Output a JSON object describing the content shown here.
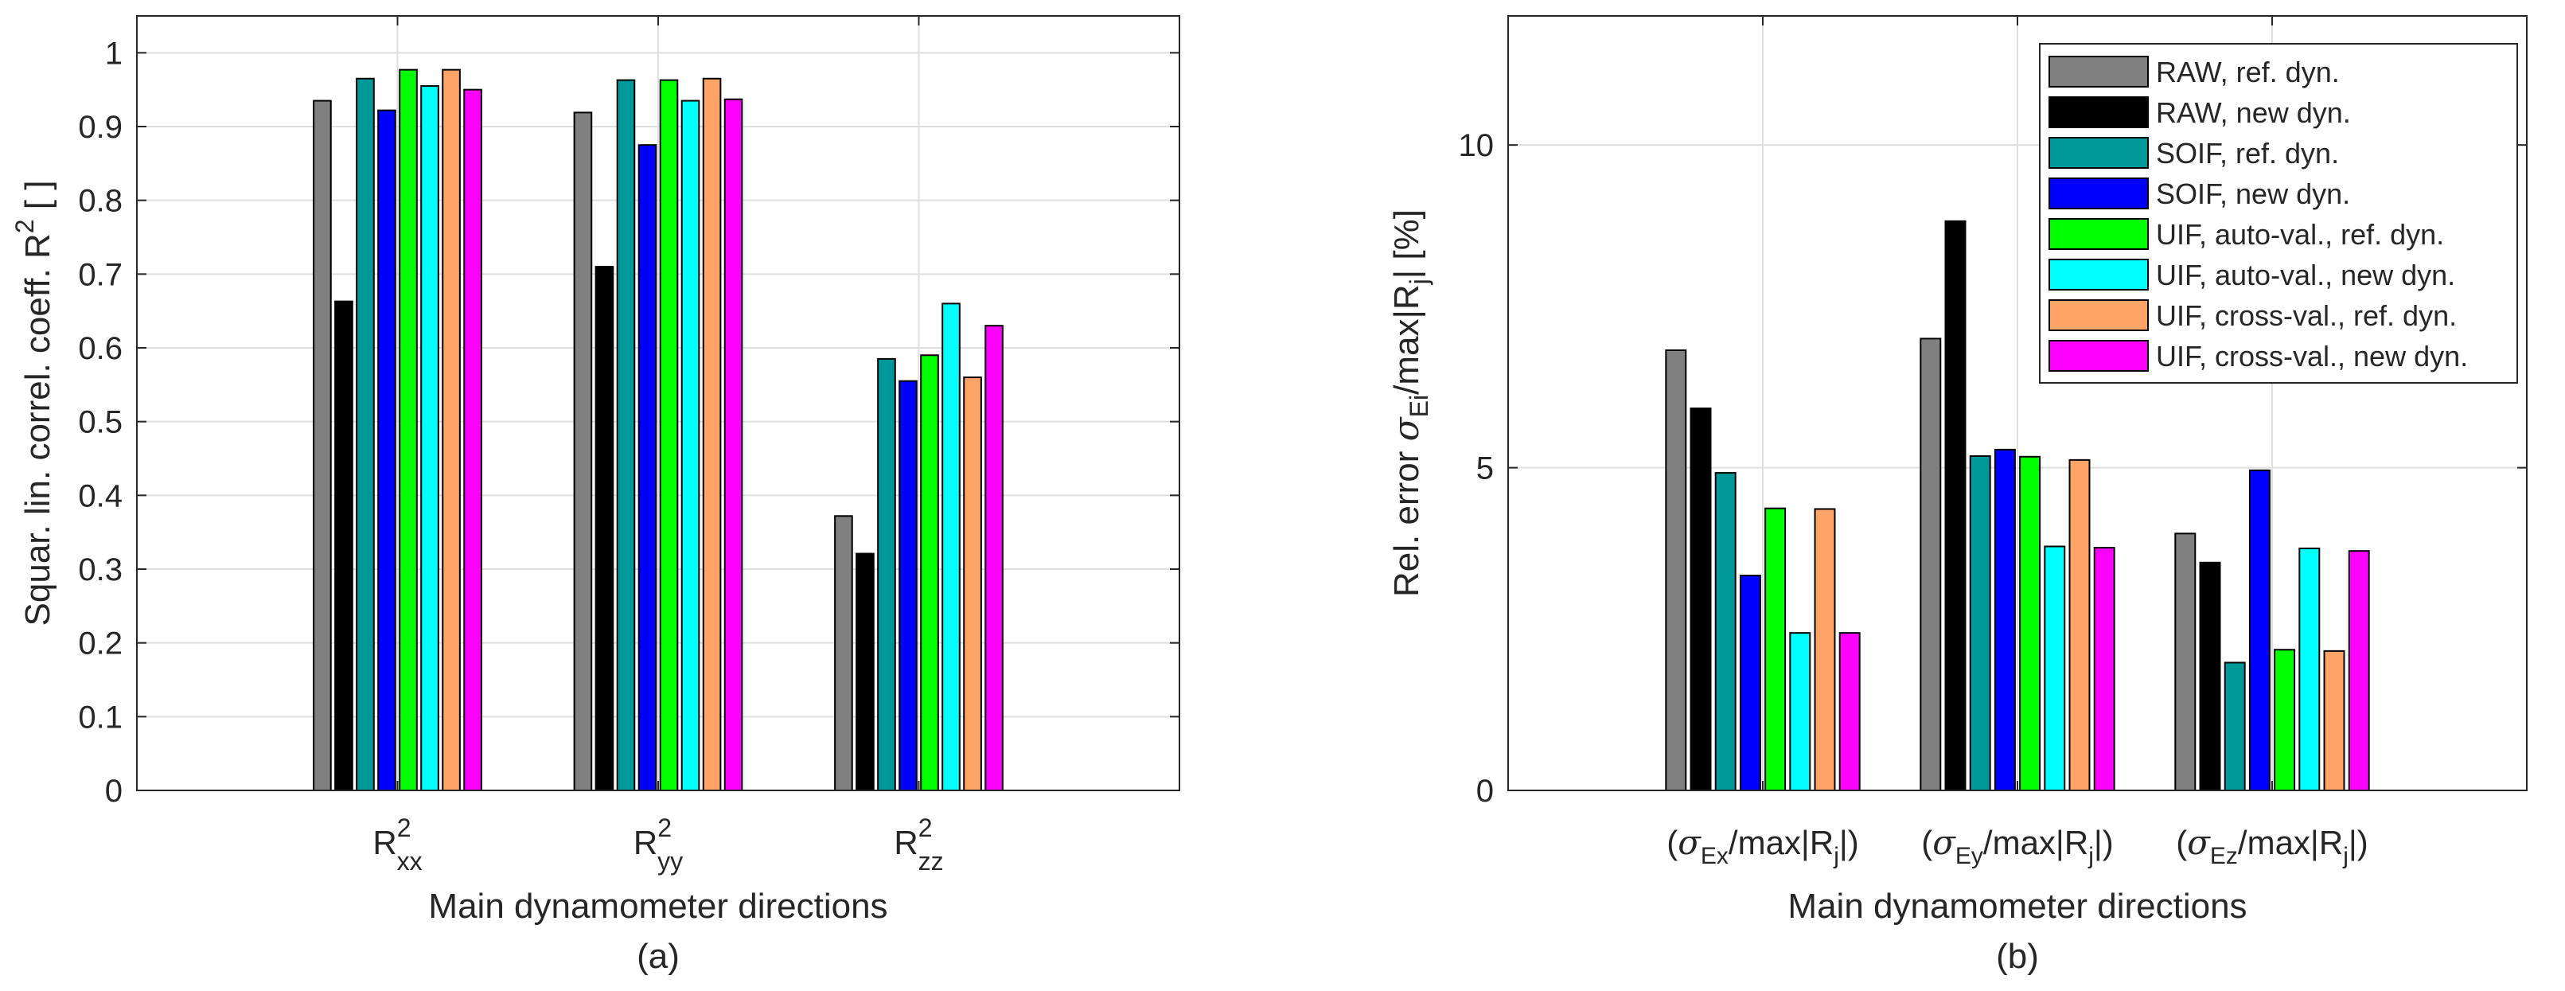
{
  "colors": {
    "RAW_ref": "#808080",
    "RAW_new": "#000000",
    "SOIF_ref": "#009999",
    "SOIF_new": "#0000ff",
    "UIF_auto_ref": "#00ff00",
    "UIF_auto_new": "#00ffff",
    "UIF_cross_ref": "#ffa366",
    "UIF_cross_new": "#ff00ff"
  },
  "chart_data": [
    {
      "type": "bar",
      "panel_label": "(a)",
      "xlabel": "Main dynamometer directions",
      "ylabel": "Squar. lin. correl. coeff. R² [ ]",
      "ylim": [
        0,
        1.05
      ],
      "yticks": [
        0,
        0.1,
        0.2,
        0.3,
        0.4,
        0.5,
        0.6,
        0.7,
        0.8,
        0.9,
        1
      ],
      "ytick_labels": [
        "0",
        "0.1",
        "0.2",
        "0.3",
        "0.4",
        "0.5",
        "0.6",
        "0.7",
        "0.8",
        "0.9",
        "1"
      ],
      "categories": [
        {
          "base": "R",
          "sup": "2",
          "sub": "xx"
        },
        {
          "base": "R",
          "sup": "2",
          "sub": "yy"
        },
        {
          "base": "R",
          "sup": "2",
          "sub": "zz"
        }
      ],
      "grid": true,
      "series": [
        {
          "name": "RAW, ref. dyn.",
          "color_key": "RAW_ref",
          "values": [
            0.935,
            0.919,
            0.372
          ]
        },
        {
          "name": "RAW, new dyn.",
          "color_key": "RAW_new",
          "values": [
            0.663,
            0.71,
            0.321
          ]
        },
        {
          "name": "SOIF, ref. dyn.",
          "color_key": "SOIF_ref",
          "values": [
            0.965,
            0.963,
            0.585
          ]
        },
        {
          "name": "SOIF, new dyn.",
          "color_key": "SOIF_new",
          "values": [
            0.922,
            0.875,
            0.555
          ]
        },
        {
          "name": "UIF, auto-val., ref. dyn.",
          "color_key": "UIF_auto_ref",
          "values": [
            0.977,
            0.963,
            0.59
          ]
        },
        {
          "name": "UIF, auto-val., new dyn.",
          "color_key": "UIF_auto_new",
          "values": [
            0.955,
            0.935,
            0.66
          ]
        },
        {
          "name": "UIF, cross-val., ref. dyn.",
          "color_key": "UIF_cross_ref",
          "values": [
            0.977,
            0.965,
            0.56
          ]
        },
        {
          "name": "UIF, cross-val., new dyn.",
          "color_key": "UIF_cross_new",
          "values": [
            0.95,
            0.937,
            0.63
          ]
        }
      ]
    },
    {
      "type": "bar",
      "panel_label": "(b)",
      "xlabel": "Main dynamometer directions",
      "ylabel": "Rel. error σEi/max|Rj| [%]",
      "ylim": [
        0,
        12
      ],
      "yticks": [
        0,
        5,
        10
      ],
      "ytick_labels": [
        "0",
        "5",
        "10"
      ],
      "categories": [
        {
          "pre": "(",
          "sigma": "σ",
          "sub": "Ex",
          "post": "/max|R",
          "sub2": "j",
          "end": "|)"
        },
        {
          "pre": "(",
          "sigma": "σ",
          "sub": "Ey",
          "post": "/max|R",
          "sub2": "j",
          "end": "|)"
        },
        {
          "pre": "(",
          "sigma": "σ",
          "sub": "Ez",
          "post": "/max|R",
          "sub2": "j",
          "end": "|)"
        }
      ],
      "grid": true,
      "legend": {
        "placement": "top-right",
        "entries": [
          "RAW, ref. dyn.",
          "RAW, new dyn.",
          "SOIF, ref. dyn.",
          "SOIF, new dyn.",
          "UIF, auto-val., ref. dyn.",
          "UIF, auto-val., new dyn.",
          "UIF, cross-val., ref. dyn.",
          "UIF, cross-val., new dyn."
        ]
      },
      "series": [
        {
          "name": "RAW, ref. dyn.",
          "color_key": "RAW_ref",
          "values": [
            6.82,
            7.0,
            3.98
          ]
        },
        {
          "name": "RAW, new dyn.",
          "color_key": "RAW_new",
          "values": [
            5.92,
            8.82,
            3.53
          ]
        },
        {
          "name": "SOIF, ref. dyn.",
          "color_key": "SOIF_ref",
          "values": [
            4.92,
            5.18,
            1.98
          ]
        },
        {
          "name": "SOIF, new dyn.",
          "color_key": "SOIF_new",
          "values": [
            3.33,
            5.28,
            4.96
          ]
        },
        {
          "name": "UIF, auto-val., ref. dyn.",
          "color_key": "UIF_auto_ref",
          "values": [
            4.37,
            5.17,
            2.18
          ]
        },
        {
          "name": "UIF, auto-val., new dyn.",
          "color_key": "UIF_auto_new",
          "values": [
            2.44,
            3.78,
            3.75
          ]
        },
        {
          "name": "UIF, cross-val., ref. dyn.",
          "color_key": "UIF_cross_ref",
          "values": [
            4.36,
            5.12,
            2.16
          ]
        },
        {
          "name": "UIF, cross-val., new dyn.",
          "color_key": "UIF_cross_new",
          "values": [
            2.44,
            3.76,
            3.71
          ]
        }
      ]
    }
  ]
}
